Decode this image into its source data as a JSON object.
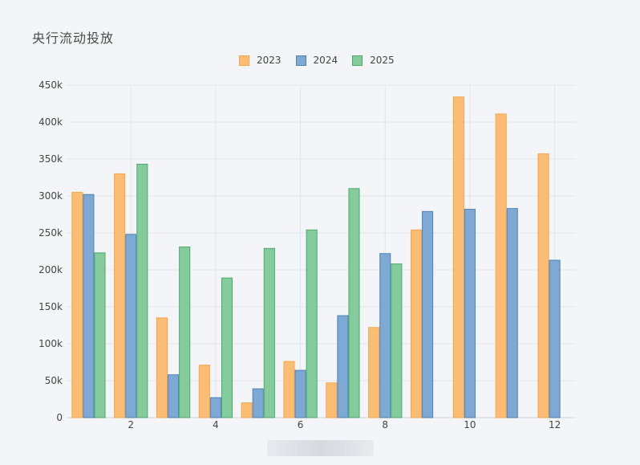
{
  "chart_data": {
    "type": "bar",
    "title": "央行流动投放",
    "xlabel": "",
    "ylabel": "",
    "x": [
      1,
      2,
      3,
      4,
      5,
      6,
      7,
      8,
      9,
      10,
      11,
      12
    ],
    "x_ticks": [
      "2",
      "4",
      "6",
      "8",
      "10",
      "12"
    ],
    "x_tick_values": [
      2,
      4,
      6,
      8,
      10,
      12
    ],
    "y_ticks": [
      "0",
      "50k",
      "100k",
      "150k",
      "200k",
      "250k",
      "300k",
      "350k",
      "400k",
      "450k"
    ],
    "ylim": [
      0,
      450000
    ],
    "grid": true,
    "legend_position": "top-center",
    "series": [
      {
        "name": "2023",
        "color": "#fbbd74",
        "stroke": "#f5a54c",
        "values": [
          305000,
          330000,
          135000,
          71000,
          20000,
          76000,
          47000,
          122000,
          254000,
          434000,
          411000,
          357000
        ]
      },
      {
        "name": "2024",
        "color": "#7ea9d4",
        "stroke": "#4f82b5",
        "values": [
          302000,
          248000,
          58000,
          27000,
          39000,
          64000,
          138000,
          222000,
          279000,
          282000,
          283000,
          213000
        ]
      },
      {
        "name": "2025",
        "color": "#85cc9c",
        "stroke": "#4ca96b",
        "values": [
          223000,
          343000,
          231000,
          189000,
          229000,
          254000,
          310000,
          208000,
          null,
          null,
          null,
          null
        ]
      }
    ]
  }
}
